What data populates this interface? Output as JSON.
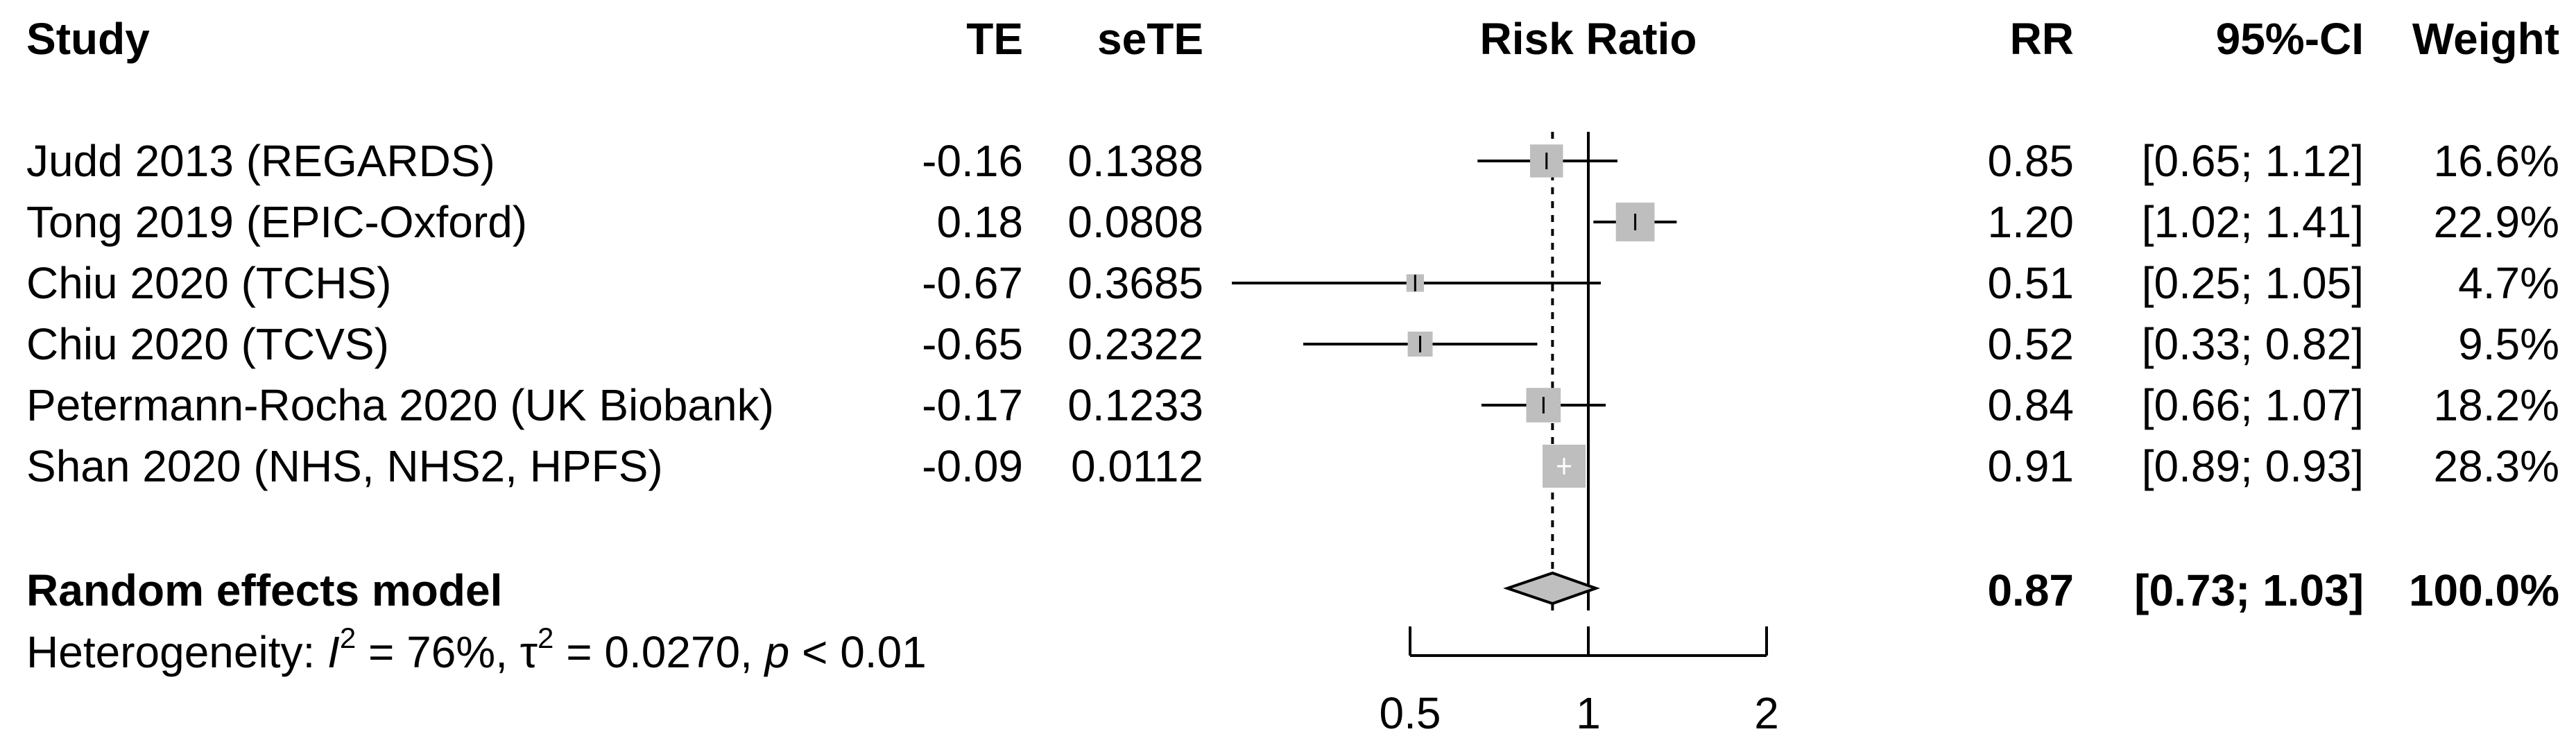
{
  "chart_data": {
    "type": "forest",
    "headers": {
      "study": "Study",
      "te": "TE",
      "sete": "seTE",
      "plot": "Risk Ratio",
      "rr": "RR",
      "ci": "95%-CI",
      "weight": "Weight"
    },
    "studies": [
      {
        "name": "Judd 2013 (REGARDS)",
        "te": "-0.16",
        "sete": "0.1388",
        "rr": 0.85,
        "lower": 0.65,
        "upper": 1.12,
        "rr_text": "0.85",
        "ci_text": "[0.65; 1.12]",
        "weight": 16.6,
        "weight_text": "16.6%"
      },
      {
        "name": "Tong 2019 (EPIC-Oxford)",
        "te": "0.18",
        "sete": "0.0808",
        "rr": 1.2,
        "lower": 1.02,
        "upper": 1.41,
        "rr_text": "1.20",
        "ci_text": "[1.02; 1.41]",
        "weight": 22.9,
        "weight_text": "22.9%"
      },
      {
        "name": "Chiu 2020 (TCHS)",
        "te": "-0.67",
        "sete": "0.3685",
        "rr": 0.51,
        "lower": 0.25,
        "upper": 1.05,
        "rr_text": "0.51",
        "ci_text": "[0.25; 1.05]",
        "weight": 4.7,
        "weight_text": "4.7%"
      },
      {
        "name": "Chiu 2020 (TCVS)",
        "te": "-0.65",
        "sete": "0.2322",
        "rr": 0.52,
        "lower": 0.33,
        "upper": 0.82,
        "rr_text": "0.52",
        "ci_text": "[0.33; 0.82]",
        "weight": 9.5,
        "weight_text": "9.5%"
      },
      {
        "name": "Petermann-Rocha 2020 (UK Biobank)",
        "te": "-0.17",
        "sete": "0.1233",
        "rr": 0.84,
        "lower": 0.66,
        "upper": 1.07,
        "rr_text": "0.84",
        "ci_text": "[0.66; 1.07]",
        "weight": 18.2,
        "weight_text": "18.2%"
      },
      {
        "name": "Shan 2020 (NHS, NHS2, HPFS)",
        "te": "-0.09",
        "sete": "0.0112",
        "rr": 0.91,
        "lower": 0.89,
        "upper": 0.93,
        "rr_text": "0.91",
        "ci_text": "[0.89; 0.93]",
        "weight": 28.3,
        "weight_text": "28.3%"
      }
    ],
    "pooled": {
      "label": "Random effects model",
      "rr": 0.87,
      "lower": 0.73,
      "upper": 1.03,
      "rr_text": "0.87",
      "ci_text": "[0.73; 1.03]",
      "weight_text": "100.0%"
    },
    "heterogeneity": {
      "prefix": "Heterogeneity: ",
      "i_symbol": "I",
      "i_sup": "2",
      "i2_value": " = 76%, ",
      "tau_symbol": "τ",
      "tau_sup": "2",
      "tau2_value": " = 0.0270, ",
      "p_symbol": "p",
      "p_value": " < 0.01"
    },
    "x_axis": {
      "scale": "log",
      "range": [
        0.5,
        2
      ],
      "ticks": [
        0.5,
        1,
        2
      ],
      "tick_labels": [
        "0.5",
        "1",
        "2"
      ],
      "null_value": 1
    },
    "plot_range": [
      0.25,
      2
    ]
  }
}
